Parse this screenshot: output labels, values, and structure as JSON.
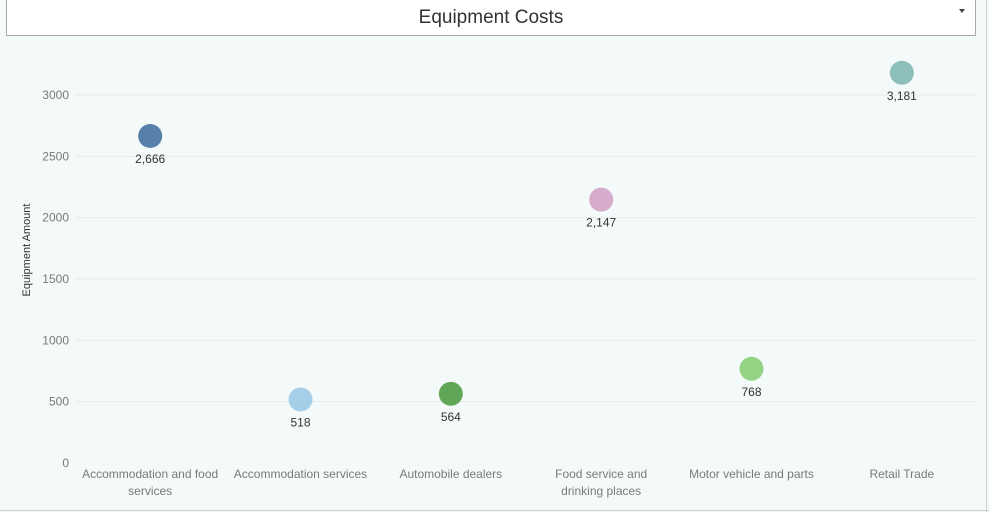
{
  "header": {
    "title": "Equipment Costs"
  },
  "chart_data": {
    "type": "scatter",
    "title": "Equipment Costs",
    "xlabel": "",
    "ylabel": "Equipment Amount",
    "ylim": [
      0,
      3300
    ],
    "yticks": [
      0,
      500,
      1000,
      1500,
      2000,
      2500,
      3000
    ],
    "grid": true,
    "categories": [
      "Accommodation and food services",
      "Accommodation services",
      "Automobile dealers",
      "Food service and drinking places",
      "Motor vehicle and parts",
      "Retail Trade"
    ],
    "values": [
      2666,
      518,
      564,
      2147,
      768,
      3181
    ],
    "data_labels": [
      "2,666",
      "518",
      "564",
      "2,147",
      "768",
      "3,181"
    ],
    "colors": [
      "#4e79a7",
      "#a0cbe8",
      "#59a14f",
      "#d4a6c8",
      "#8cd17d",
      "#86bcb6"
    ]
  }
}
